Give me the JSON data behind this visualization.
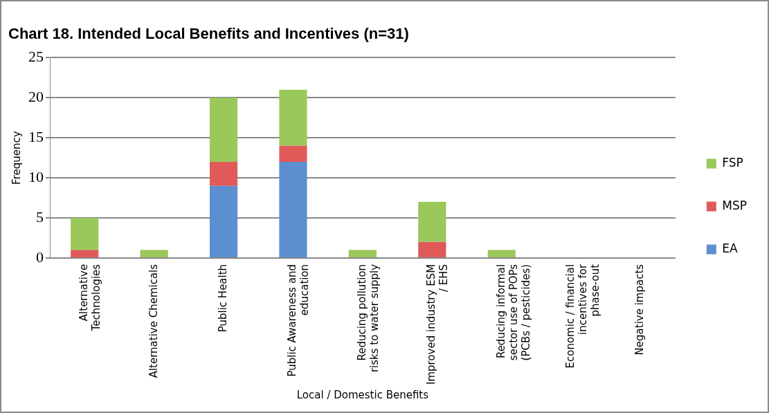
{
  "chart_data": {
    "type": "bar",
    "title": "Chart 18. Intended Local Benefits and Incentives (n=31)",
    "xlabel": "Local / Domestic Benefits",
    "ylabel": "Frequency",
    "categories": [
      "Alternative Technologies",
      "Alternative Chemicals",
      "Public Health",
      "Public Awareness and education",
      "Reducing pollution risks to water supply",
      "Improved industry ESM / EHS",
      "Reducing informal sector use of POPs (PCBs / pesticides)",
      "Economic / financial incentives for phase-out",
      "Negative impacts"
    ],
    "series": [
      {
        "name": "EA",
        "color": "#5b8fd0",
        "values": [
          0,
          0,
          9,
          12,
          0,
          0,
          0,
          0,
          0
        ]
      },
      {
        "name": "MSP",
        "color": "#e05a5a",
        "values": [
          1,
          0,
          3,
          2,
          0,
          2,
          0,
          0,
          0
        ]
      },
      {
        "name": "FSP",
        "color": "#9bc85a",
        "values": [
          4,
          1,
          8,
          7,
          1,
          5,
          1,
          0,
          0
        ]
      }
    ],
    "stacked": true,
    "ylim": [
      0,
      25
    ],
    "yticks": [
      0,
      5,
      10,
      15,
      20,
      25
    ],
    "grid": "y",
    "legend": "right"
  }
}
